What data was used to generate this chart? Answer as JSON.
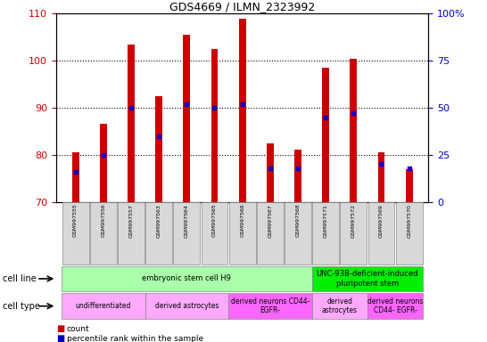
{
  "title": "GDS4669 / ILMN_2323992",
  "samples": [
    "GSM997555",
    "GSM997556",
    "GSM997557",
    "GSM997563",
    "GSM997564",
    "GSM997565",
    "GSM997566",
    "GSM997567",
    "GSM997568",
    "GSM997571",
    "GSM997572",
    "GSM997569",
    "GSM997570"
  ],
  "counts": [
    80.5,
    86.5,
    103.5,
    92.5,
    105.5,
    102.5,
    109.0,
    82.5,
    81.0,
    98.5,
    100.5,
    80.5,
    77.0
  ],
  "percentiles": [
    16,
    25,
    50,
    35,
    52,
    50,
    52,
    18,
    18,
    45,
    47,
    20,
    18
  ],
  "ylim_left": [
    70,
    110
  ],
  "ylim_right": [
    0,
    100
  ],
  "left_yticks": [
    70,
    80,
    90,
    100,
    110
  ],
  "right_yticks": [
    0,
    25,
    50,
    75,
    100
  ],
  "right_yticklabels": [
    "0",
    "25",
    "50",
    "75",
    "100%"
  ],
  "bar_color": "#cc0000",
  "dot_color": "#0000cc",
  "bar_bottom": 70,
  "cell_line_groups": [
    {
      "label": "embryonic stem cell H9",
      "start": 0,
      "end": 9,
      "color": "#aaffaa"
    },
    {
      "label": "UNC-93B-deficient-induced\npluripotent stem",
      "start": 9,
      "end": 13,
      "color": "#00ee00"
    }
  ],
  "cell_type_groups": [
    {
      "label": "undifferentiated",
      "start": 0,
      "end": 3,
      "color": "#ffaaff"
    },
    {
      "label": "derived astrocytes",
      "start": 3,
      "end": 6,
      "color": "#ffaaff"
    },
    {
      "label": "derived neurons CD44-\nEGFR-",
      "start": 6,
      "end": 9,
      "color": "#ff66ff"
    },
    {
      "label": "derived\nastrocytes",
      "start": 9,
      "end": 11,
      "color": "#ffaaff"
    },
    {
      "label": "derived neurons\nCD44- EGFR-",
      "start": 11,
      "end": 13,
      "color": "#ff66ff"
    }
  ],
  "legend_count_color": "#cc0000",
  "legend_pct_color": "#0000cc",
  "bg_color": "#ffffff",
  "tick_label_color_left": "#cc0000",
  "tick_label_color_right": "#0000cc",
  "bar_width": 0.25
}
